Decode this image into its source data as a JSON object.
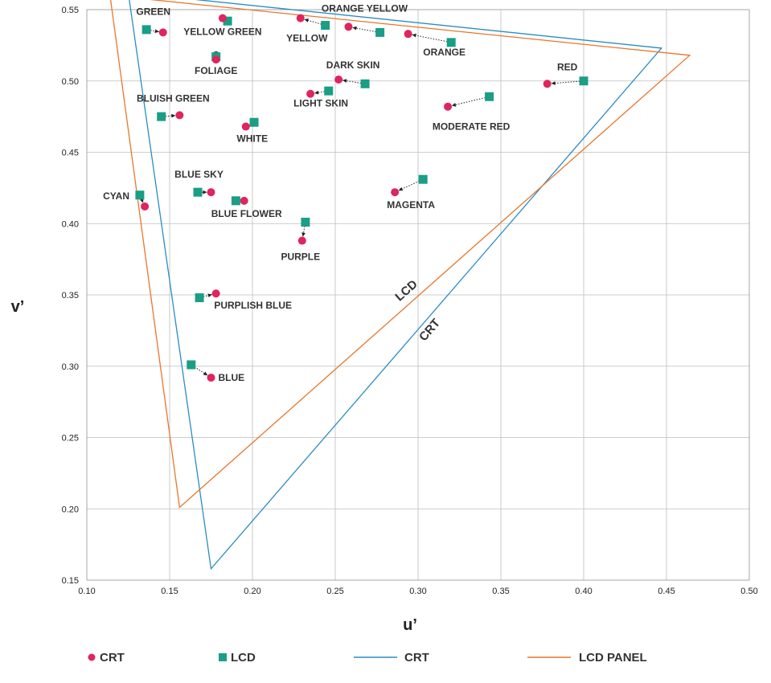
{
  "chart_data": {
    "type": "scatter",
    "xlabel": "u’",
    "ylabel": "v’",
    "xlim": [
      0.1,
      0.5
    ],
    "ylim": [
      0.15,
      0.55
    ],
    "x_ticks": [
      "0.10",
      "0.15",
      "0.20",
      "0.25",
      "0.30",
      "0.35",
      "0.40",
      "0.45",
      "0.50"
    ],
    "y_ticks": [
      "0.15",
      "0.20",
      "0.25",
      "0.30",
      "0.35",
      "0.40",
      "0.45",
      "0.50",
      "0.55"
    ],
    "grid": true,
    "colors": {
      "crt_point": "#e0245e",
      "lcd_point": "#1a9e86",
      "crt_gamut": "#2a8cc4",
      "lcd_gamut": "#e8762c"
    },
    "gamuts": [
      {
        "name": "CRT",
        "vertices": [
          [
            0.125,
            0.562
          ],
          [
            0.447,
            0.523
          ],
          [
            0.175,
            0.158
          ]
        ]
      },
      {
        "name": "LCD",
        "vertices": [
          [
            0.114,
            0.56
          ],
          [
            0.464,
            0.518
          ],
          [
            0.156,
            0.201
          ]
        ]
      }
    ],
    "patches": [
      {
        "label": "GREEN",
        "crt": [
          0.146,
          0.534
        ],
        "lcd": [
          0.136,
          0.536
        ]
      },
      {
        "label": "YELLOW GREEN",
        "crt": [
          0.182,
          0.544
        ],
        "lcd": [
          0.185,
          0.542
        ]
      },
      {
        "label": "YELLOW",
        "crt": [
          0.229,
          0.544
        ],
        "lcd": [
          0.244,
          0.539
        ]
      },
      {
        "label": "ORANGE YELLOW",
        "crt": [
          0.258,
          0.538
        ],
        "lcd": [
          0.277,
          0.534
        ]
      },
      {
        "label": "ORANGE",
        "crt": [
          0.294,
          0.533
        ],
        "lcd": [
          0.32,
          0.527
        ]
      },
      {
        "label": "FOLIAGE",
        "crt": [
          0.178,
          0.515
        ],
        "lcd": [
          0.178,
          0.517
        ]
      },
      {
        "label": "DARK SKIN",
        "crt": [
          0.252,
          0.501
        ],
        "lcd": [
          0.268,
          0.498
        ]
      },
      {
        "label": "RED",
        "crt": [
          0.378,
          0.498
        ],
        "lcd": [
          0.4,
          0.5
        ]
      },
      {
        "label": "LIGHT SKIN",
        "crt": [
          0.235,
          0.491
        ],
        "lcd": [
          0.246,
          0.493
        ]
      },
      {
        "label": "MODERATE RED",
        "crt": [
          0.318,
          0.482
        ],
        "lcd": [
          0.343,
          0.489
        ]
      },
      {
        "label": "BLUISH GREEN",
        "crt": [
          0.156,
          0.476
        ],
        "lcd": [
          0.145,
          0.475
        ]
      },
      {
        "label": "WHITE",
        "crt": [
          0.196,
          0.468
        ],
        "lcd": [
          0.201,
          0.471
        ]
      },
      {
        "label": "BLUE SKY",
        "crt": [
          0.175,
          0.422
        ],
        "lcd": [
          0.167,
          0.422
        ]
      },
      {
        "label": "BLUE FLOWER",
        "crt": [
          0.195,
          0.416
        ],
        "lcd": [
          0.19,
          0.416
        ]
      },
      {
        "label": "CYAN",
        "crt": [
          0.135,
          0.412
        ],
        "lcd": [
          0.132,
          0.42
        ]
      },
      {
        "label": "MAGENTA",
        "crt": [
          0.286,
          0.422
        ],
        "lcd": [
          0.303,
          0.431
        ]
      },
      {
        "label": "PURPLE",
        "crt": [
          0.23,
          0.388
        ],
        "lcd": [
          0.232,
          0.401
        ]
      },
      {
        "label": "PURPLISH BLUE",
        "crt": [
          0.178,
          0.351
        ],
        "lcd": [
          0.168,
          0.348
        ]
      },
      {
        "label": "BLUE",
        "crt": [
          0.175,
          0.292
        ],
        "lcd": [
          0.163,
          0.301
        ]
      }
    ],
    "legend": [
      "CRT",
      "LCD",
      "CRT",
      "LCD PANEL"
    ]
  }
}
